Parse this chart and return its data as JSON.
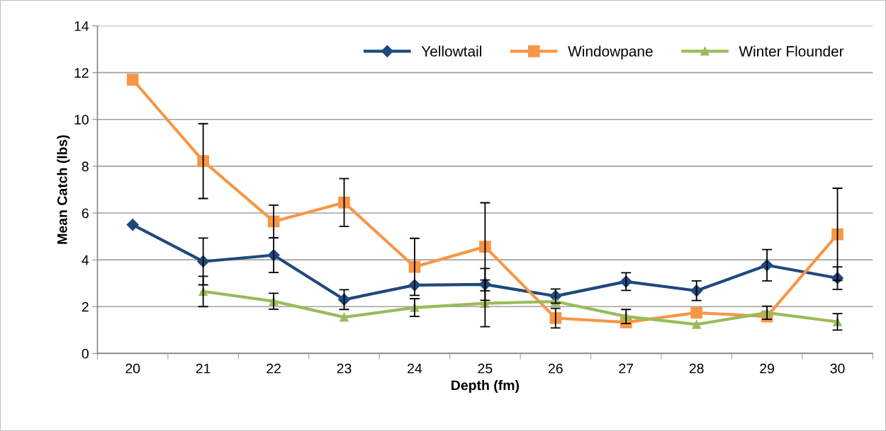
{
  "chart_data": {
    "type": "line",
    "xlabel": "Depth (fm)",
    "ylabel": "Mean Catch (lbs)",
    "categories": [
      "20",
      "21",
      "22",
      "23",
      "24",
      "25",
      "26",
      "27",
      "28",
      "29",
      "30"
    ],
    "ylim": [
      0,
      14
    ],
    "yticks": [
      0,
      2,
      4,
      6,
      8,
      10,
      12,
      14
    ],
    "grid": "y",
    "legend": "top right",
    "series": [
      {
        "name": "Yellowtail",
        "color": "#1f497d",
        "marker": "diamond",
        "values": [
          5.5,
          3.93,
          4.2,
          2.3,
          2.92,
          2.95,
          2.45,
          3.07,
          2.68,
          3.77,
          3.22
        ],
        "errors": [
          null,
          1.0,
          0.74,
          0.42,
          null,
          0.68,
          0.3,
          0.38,
          0.42,
          0.67,
          0.48
        ]
      },
      {
        "name": "Windowpane",
        "color": "#f79646",
        "marker": "square",
        "values": [
          11.7,
          8.22,
          5.64,
          6.45,
          3.7,
          4.56,
          1.51,
          1.33,
          1.74,
          1.58,
          5.09
        ],
        "errors": [
          null,
          1.6,
          0.7,
          1.02,
          1.22,
          1.88,
          0.42,
          null,
          null,
          null,
          1.97
        ]
      },
      {
        "name": "Winter Flounder",
        "color": "#9bbb59",
        "marker": "triangle",
        "values": [
          null,
          2.65,
          2.23,
          1.55,
          1.96,
          2.14,
          2.22,
          1.58,
          1.24,
          1.74,
          1.35
        ],
        "errors": [
          null,
          0.65,
          0.34,
          null,
          0.38,
          1.0,
          null,
          0.3,
          null,
          0.28,
          0.35
        ]
      }
    ]
  }
}
